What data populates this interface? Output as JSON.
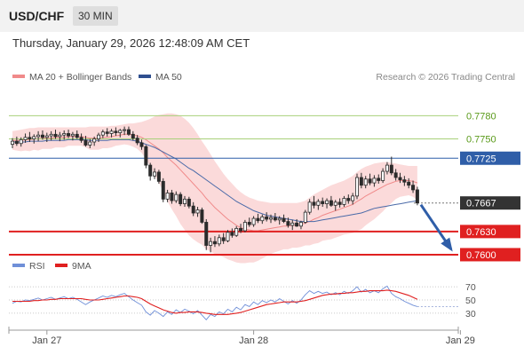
{
  "header": {
    "pair": "USD/CHF",
    "timeframe": "30 MIN",
    "datetime": "Thursday, January 29, 2026 12:48:09 AM CET",
    "legend_ma20": "MA 20 + Bollinger Bands",
    "legend_ma50": "MA 50",
    "copyright": "Research © 2026 Trading Central",
    "legend_rsi": "RSI",
    "legend_9ma": "9MA"
  },
  "colors": {
    "candle": "#2b2b2b",
    "bollinger_fill": "#fbdada",
    "ma20": "#f08a8a",
    "ma50": "#4a6aa8",
    "resistance": "#a8d07a",
    "pivot": "#2f5ea8",
    "support": "#e02020",
    "current": "#333333",
    "arrow": "#2f5ea8",
    "rsi": "#6f8fd8",
    "rsi_ma": "#e02020"
  },
  "chart_data": [
    {
      "type": "candlestick",
      "ylim": [
        0.7585,
        0.7815
      ],
      "x_ticks": [
        {
          "label": "Jan 27",
          "index": 8
        },
        {
          "label": "Jan 28",
          "index": 56
        },
        {
          "label": "Jan 29",
          "index": 104
        }
      ],
      "candles": [
        [
          0.7743,
          0.7751,
          0.7738,
          0.7747
        ],
        [
          0.7747,
          0.7753,
          0.7741,
          0.7744
        ],
        [
          0.7744,
          0.7752,
          0.774,
          0.7749
        ],
        [
          0.7749,
          0.7757,
          0.7745,
          0.7752
        ],
        [
          0.7752,
          0.7759,
          0.7746,
          0.775
        ],
        [
          0.775,
          0.7756,
          0.7744,
          0.7753
        ],
        [
          0.7753,
          0.776,
          0.7747,
          0.7755
        ],
        [
          0.7755,
          0.7761,
          0.7749,
          0.7752
        ],
        [
          0.7752,
          0.7758,
          0.7746,
          0.7754
        ],
        [
          0.7754,
          0.776,
          0.7748,
          0.7756
        ],
        [
          0.7756,
          0.7762,
          0.775,
          0.7753
        ],
        [
          0.7753,
          0.7759,
          0.7747,
          0.7755
        ],
        [
          0.7755,
          0.7761,
          0.7749,
          0.7757
        ],
        [
          0.7757,
          0.7762,
          0.7751,
          0.7754
        ],
        [
          0.7754,
          0.7759,
          0.7748,
          0.7756
        ],
        [
          0.7756,
          0.7761,
          0.775,
          0.7752
        ],
        [
          0.7752,
          0.7757,
          0.7745,
          0.7748
        ],
        [
          0.7748,
          0.7754,
          0.774,
          0.7742
        ],
        [
          0.7742,
          0.775,
          0.7738,
          0.7746
        ],
        [
          0.7746,
          0.7753,
          0.7741,
          0.775
        ],
        [
          0.775,
          0.7758,
          0.7746,
          0.7755
        ],
        [
          0.7755,
          0.7762,
          0.7751,
          0.7759
        ],
        [
          0.7759,
          0.7764,
          0.7753,
          0.7757
        ],
        [
          0.7757,
          0.7763,
          0.7752,
          0.776
        ],
        [
          0.776,
          0.7765,
          0.7754,
          0.7758
        ],
        [
          0.7758,
          0.7763,
          0.7752,
          0.7761
        ],
        [
          0.7761,
          0.7766,
          0.7755,
          0.7762
        ],
        [
          0.7762,
          0.7766,
          0.7754,
          0.7756
        ],
        [
          0.7756,
          0.776,
          0.7748,
          0.7751
        ],
        [
          0.7751,
          0.7755,
          0.7742,
          0.7745
        ],
        [
          0.7745,
          0.7749,
          0.7736,
          0.774
        ],
        [
          0.774,
          0.7742,
          0.7712,
          0.7716
        ],
        [
          0.7716,
          0.7719,
          0.7696,
          0.7702
        ],
        [
          0.7702,
          0.7712,
          0.7698,
          0.7707
        ],
        [
          0.7707,
          0.771,
          0.7692,
          0.7695
        ],
        [
          0.7695,
          0.7699,
          0.7668,
          0.7672
        ],
        [
          0.7672,
          0.7684,
          0.7668,
          0.768
        ],
        [
          0.768,
          0.7684,
          0.7666,
          0.767
        ],
        [
          0.767,
          0.7682,
          0.7667,
          0.7678
        ],
        [
          0.7678,
          0.7681,
          0.7663,
          0.7666
        ],
        [
          0.7666,
          0.7676,
          0.7662,
          0.7672
        ],
        [
          0.7672,
          0.7675,
          0.766,
          0.7663
        ],
        [
          0.7663,
          0.7668,
          0.765,
          0.7654
        ],
        [
          0.7654,
          0.7662,
          0.7649,
          0.7658
        ],
        [
          0.7658,
          0.7661,
          0.764,
          0.7642
        ],
        [
          0.7642,
          0.7646,
          0.7606,
          0.7612
        ],
        [
          0.7612,
          0.7622,
          0.7603,
          0.7617
        ],
        [
          0.7617,
          0.7624,
          0.761,
          0.7614
        ],
        [
          0.7614,
          0.7626,
          0.7611,
          0.7622
        ],
        [
          0.7622,
          0.7628,
          0.7614,
          0.7618
        ],
        [
          0.7618,
          0.7632,
          0.7616,
          0.7629
        ],
        [
          0.7629,
          0.7634,
          0.7622,
          0.7625
        ],
        [
          0.7625,
          0.7637,
          0.7623,
          0.7634
        ],
        [
          0.7634,
          0.764,
          0.7628,
          0.7631
        ],
        [
          0.7631,
          0.7645,
          0.7629,
          0.7642
        ],
        [
          0.7642,
          0.7648,
          0.7636,
          0.7639
        ],
        [
          0.7639,
          0.765,
          0.7636,
          0.7647
        ],
        [
          0.7647,
          0.7653,
          0.7641,
          0.7644
        ],
        [
          0.7644,
          0.7652,
          0.764,
          0.7649
        ],
        [
          0.7649,
          0.7655,
          0.7643,
          0.7646
        ],
        [
          0.7646,
          0.7652,
          0.7641,
          0.7648
        ],
        [
          0.7648,
          0.7654,
          0.7643,
          0.7645
        ],
        [
          0.7645,
          0.765,
          0.7639,
          0.7647
        ],
        [
          0.7647,
          0.7652,
          0.7641,
          0.7643
        ],
        [
          0.7643,
          0.7648,
          0.7635,
          0.7638
        ],
        [
          0.7638,
          0.7645,
          0.7632,
          0.7641
        ],
        [
          0.7641,
          0.7646,
          0.7636,
          0.7637
        ],
        [
          0.7637,
          0.7644,
          0.7633,
          0.7642
        ],
        [
          0.7642,
          0.7658,
          0.764,
          0.7655
        ],
        [
          0.7655,
          0.7672,
          0.7652,
          0.7668
        ],
        [
          0.7668,
          0.7676,
          0.766,
          0.7664
        ],
        [
          0.7664,
          0.7672,
          0.7658,
          0.7669
        ],
        [
          0.7669,
          0.7674,
          0.7662,
          0.7666
        ],
        [
          0.7666,
          0.7673,
          0.766,
          0.767
        ],
        [
          0.767,
          0.7676,
          0.7662,
          0.7664
        ],
        [
          0.7664,
          0.7671,
          0.7657,
          0.7668
        ],
        [
          0.7668,
          0.7673,
          0.7661,
          0.7665
        ],
        [
          0.7665,
          0.7676,
          0.7662,
          0.7673
        ],
        [
          0.7673,
          0.7678,
          0.7666,
          0.767
        ],
        [
          0.767,
          0.768,
          0.7665,
          0.7676
        ],
        [
          0.7676,
          0.7705,
          0.7672,
          0.77
        ],
        [
          0.77,
          0.7706,
          0.7686,
          0.769
        ],
        [
          0.769,
          0.7702,
          0.7686,
          0.7698
        ],
        [
          0.7698,
          0.7705,
          0.769,
          0.7693
        ],
        [
          0.7693,
          0.7703,
          0.7688,
          0.7699
        ],
        [
          0.7699,
          0.7704,
          0.7692,
          0.7696
        ],
        [
          0.7696,
          0.7712,
          0.7693,
          0.7708
        ],
        [
          0.7708,
          0.772,
          0.7704,
          0.7716
        ],
        [
          0.7716,
          0.7727,
          0.7703,
          0.7706
        ],
        [
          0.7706,
          0.7711,
          0.7696,
          0.77
        ],
        [
          0.77,
          0.7706,
          0.7693,
          0.7697
        ],
        [
          0.7697,
          0.7702,
          0.7689,
          0.7694
        ],
        [
          0.7694,
          0.7699,
          0.7686,
          0.769
        ],
        [
          0.769,
          0.7696,
          0.768,
          0.7684
        ],
        [
          0.7684,
          0.7688,
          0.7664,
          0.7667
        ]
      ],
      "ma20": [
        0.7748,
        0.7748,
        0.7748,
        0.7749,
        0.7749,
        0.775,
        0.775,
        0.7751,
        0.7751,
        0.7751,
        0.7752,
        0.7752,
        0.7752,
        0.7753,
        0.7753,
        0.7753,
        0.7753,
        0.7752,
        0.7751,
        0.7751,
        0.7751,
        0.7752,
        0.7752,
        0.7753,
        0.7754,
        0.7755,
        0.7756,
        0.7756,
        0.7755,
        0.7754,
        0.7752,
        0.7749,
        0.7745,
        0.7741,
        0.7737,
        0.7732,
        0.7726,
        0.7721,
        0.7716,
        0.771,
        0.7704,
        0.7698,
        0.7692,
        0.7686,
        0.768,
        0.7673,
        0.7667,
        0.7661,
        0.7656,
        0.7651,
        0.7646,
        0.7642,
        0.7638,
        0.7635,
        0.7633,
        0.7632,
        0.7631,
        0.7631,
        0.7632,
        0.7633,
        0.7634,
        0.7635,
        0.7636,
        0.7637,
        0.7637,
        0.7638,
        0.7638,
        0.7639,
        0.7641,
        0.7643,
        0.7646,
        0.7648,
        0.7651,
        0.7653,
        0.7655,
        0.7657,
        0.7659,
        0.7661,
        0.7663,
        0.7665,
        0.7669,
        0.7672,
        0.7676,
        0.7679,
        0.7682,
        0.7685,
        0.7688,
        0.7691,
        0.7693,
        0.7695,
        0.7696,
        0.7696,
        0.7696,
        0.7695,
        0.7693
      ],
      "bb_upper": [
        0.776,
        0.7761,
        0.7762,
        0.7763,
        0.7764,
        0.7764,
        0.7765,
        0.7765,
        0.7765,
        0.7765,
        0.7765,
        0.7765,
        0.7765,
        0.7765,
        0.7765,
        0.7765,
        0.7765,
        0.7765,
        0.7766,
        0.7766,
        0.7766,
        0.7766,
        0.7766,
        0.7767,
        0.7767,
        0.7768,
        0.7769,
        0.777,
        0.777,
        0.7771,
        0.7772,
        0.7774,
        0.7776,
        0.7779,
        0.7781,
        0.7782,
        0.7783,
        0.7783,
        0.7782,
        0.778,
        0.7776,
        0.7771,
        0.7764,
        0.7756,
        0.7747,
        0.7739,
        0.773,
        0.7721,
        0.7713,
        0.7705,
        0.7698,
        0.7692,
        0.7686,
        0.7681,
        0.7677,
        0.7674,
        0.7672,
        0.767,
        0.7669,
        0.7668,
        0.7667,
        0.7667,
        0.7667,
        0.7667,
        0.7667,
        0.7667,
        0.7667,
        0.7668,
        0.767,
        0.7674,
        0.7678,
        0.7681,
        0.7684,
        0.7687,
        0.769,
        0.7692,
        0.7694,
        0.7696,
        0.7699,
        0.7702,
        0.7707,
        0.7711,
        0.7714,
        0.7716,
        0.7718,
        0.7719,
        0.772,
        0.772,
        0.7719,
        0.7718,
        0.7717,
        0.7716,
        0.7715,
        0.7715,
        0.7715
      ],
      "bb_lower": [
        0.7736,
        0.7735,
        0.7734,
        0.7735,
        0.7734,
        0.7736,
        0.7735,
        0.7737,
        0.7737,
        0.7737,
        0.7739,
        0.7739,
        0.7739,
        0.7741,
        0.7741,
        0.7741,
        0.7741,
        0.7739,
        0.7736,
        0.7736,
        0.7736,
        0.7738,
        0.7738,
        0.7739,
        0.7741,
        0.7742,
        0.7743,
        0.7742,
        0.774,
        0.7737,
        0.7732,
        0.7724,
        0.7714,
        0.7703,
        0.7693,
        0.7682,
        0.7669,
        0.7659,
        0.765,
        0.764,
        0.7632,
        0.7625,
        0.762,
        0.7616,
        0.7613,
        0.7607,
        0.7604,
        0.7601,
        0.7599,
        0.7597,
        0.7594,
        0.7592,
        0.759,
        0.7589,
        0.7589,
        0.759,
        0.759,
        0.7592,
        0.7595,
        0.7598,
        0.7601,
        0.7603,
        0.7605,
        0.7607,
        0.7607,
        0.7609,
        0.7609,
        0.761,
        0.7612,
        0.7612,
        0.7614,
        0.7615,
        0.7618,
        0.7619,
        0.762,
        0.7622,
        0.7624,
        0.7626,
        0.7627,
        0.7628,
        0.7631,
        0.7633,
        0.7638,
        0.7642,
        0.7646,
        0.7651,
        0.7656,
        0.7662,
        0.7667,
        0.7672,
        0.7675,
        0.7676,
        0.7677,
        0.7675,
        0.7671
      ],
      "ma50": [
        0.7746,
        0.7746,
        0.7746,
        0.7746,
        0.7747,
        0.7747,
        0.7747,
        0.7747,
        0.7748,
        0.7748,
        0.7748,
        0.7748,
        0.7748,
        0.7749,
        0.7749,
        0.7749,
        0.7749,
        0.7749,
        0.7748,
        0.7748,
        0.7748,
        0.7748,
        0.7748,
        0.7749,
        0.7749,
        0.7749,
        0.7749,
        0.7749,
        0.7748,
        0.7747,
        0.7745,
        0.7743,
        0.7741,
        0.7739,
        0.7736,
        0.7733,
        0.773,
        0.7727,
        0.7724,
        0.772,
        0.7716,
        0.7712,
        0.7709,
        0.7705,
        0.7701,
        0.7697,
        0.7693,
        0.7689,
        0.7685,
        0.7681,
        0.7677,
        0.7673,
        0.7669,
        0.7666,
        0.7663,
        0.766,
        0.7657,
        0.7655,
        0.7653,
        0.7651,
        0.765,
        0.7649,
        0.7648,
        0.7647,
        0.7646,
        0.7645,
        0.7644,
        0.7643,
        0.7643,
        0.7643,
        0.7643,
        0.7644,
        0.7645,
        0.7646,
        0.7647,
        0.7648,
        0.7649,
        0.765,
        0.7651,
        0.7652,
        0.7653,
        0.7654,
        0.7656,
        0.7658,
        0.766,
        0.7661,
        0.7662,
        0.7663,
        0.7664,
        0.7665,
        0.7666,
        0.7667,
        0.7668,
        0.7669,
        0.767
      ],
      "levels": [
        {
          "value": 0.778,
          "label": "0.7780",
          "kind": "resistance"
        },
        {
          "value": 0.775,
          "label": "0.7750",
          "kind": "resistance"
        },
        {
          "value": 0.7725,
          "label": "0.7725",
          "kind": "pivot"
        },
        {
          "value": 0.7667,
          "label": "0.7667",
          "kind": "current"
        },
        {
          "value": 0.763,
          "label": "0.7630",
          "kind": "support"
        },
        {
          "value": 0.76,
          "label": "0.7600",
          "kind": "support"
        }
      ],
      "projection": {
        "from": 0.7667,
        "to": 0.76
      }
    },
    {
      "type": "line",
      "ylim": [
        15,
        85
      ],
      "y_ticks": [
        "70",
        "50",
        "30"
      ],
      "series": [
        {
          "name": "RSI",
          "values": [
            45,
            48,
            47,
            50,
            49,
            51,
            53,
            50,
            52,
            54,
            51,
            53,
            55,
            52,
            54,
            51,
            47,
            43,
            47,
            50,
            53,
            56,
            54,
            57,
            55,
            58,
            60,
            55,
            50,
            46,
            42,
            32,
            27,
            34,
            30,
            25,
            32,
            28,
            35,
            31,
            36,
            33,
            29,
            34,
            27,
            20,
            28,
            25,
            32,
            29,
            36,
            32,
            39,
            35,
            43,
            40,
            47,
            43,
            49,
            46,
            50,
            47,
            52,
            48,
            44,
            49,
            45,
            50,
            58,
            64,
            60,
            63,
            60,
            62,
            58,
            61,
            58,
            63,
            60,
            64,
            70,
            62,
            66,
            61,
            64,
            61,
            67,
            71,
            60,
            55,
            52,
            48,
            45,
            42,
            40
          ]
        },
        {
          "name": "9MA",
          "values": [
            48,
            48,
            48,
            48,
            48,
            49,
            49,
            50,
            50,
            51,
            51,
            52,
            52,
            52,
            52,
            52,
            52,
            51,
            50,
            50,
            50,
            51,
            52,
            53,
            54,
            55,
            56,
            56,
            55,
            54,
            52,
            48,
            44,
            41,
            38,
            35,
            33,
            31,
            30,
            31,
            31,
            32,
            32,
            32,
            31,
            30,
            29,
            28,
            28,
            28,
            28,
            29,
            30,
            31,
            33,
            35,
            37,
            39,
            41,
            43,
            44,
            45,
            46,
            47,
            47,
            47,
            47,
            48,
            49,
            51,
            53,
            55,
            57,
            58,
            59,
            59,
            60,
            60,
            61,
            61,
            62,
            63,
            63,
            64,
            64,
            64,
            64,
            65,
            64,
            63,
            61,
            59,
            57,
            54,
            51
          ]
        }
      ]
    }
  ]
}
